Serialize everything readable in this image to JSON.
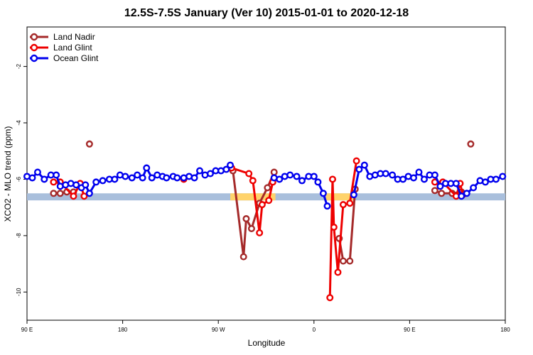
{
  "chart_data": {
    "type": "line",
    "title": "12.5S-7.5S January (Ver 10)   2015-01-01 to 2020-12-18",
    "xlabel": "Longitude",
    "ylabel": "XCO2 - MLO trend (ppm)",
    "xlim": [
      0,
      360
    ],
    "ylim": [
      -11.0,
      -0.6
    ],
    "x_ticks": [
      {
        "x": 0,
        "label": "90 E"
      },
      {
        "x": 72,
        "label": "180"
      },
      {
        "x": 144,
        "label": "90 W"
      },
      {
        "x": 216,
        "label": "0"
      },
      {
        "x": 288,
        "label": "90 E"
      },
      {
        "x": 360,
        "label": "180"
      }
    ],
    "y_ticks": [
      -2,
      -4,
      -6,
      -8,
      -10
    ],
    "grid": false,
    "legend_position": "top-left",
    "bands": [
      {
        "y_low": -6.75,
        "y_high": -6.5,
        "color": "#a9bfdc",
        "x": [
          0,
          360
        ]
      },
      {
        "y_low": -6.75,
        "y_high": -6.5,
        "color": "#ffd36b",
        "x": [
          153,
          187
        ]
      },
      {
        "y_low": -6.75,
        "y_high": -6.5,
        "color": "#ffd36b",
        "x": [
          225,
          247
        ]
      }
    ],
    "series": [
      {
        "name": "Land Nadir",
        "color": "#a52a2a",
        "segments": [
          [
            [
              20,
              -6.5
            ],
            [
              25,
              -6.5
            ],
            [
              30,
              -6.45
            ],
            [
              35,
              -6.45
            ]
          ],
          [
            [
              155,
              -5.7
            ],
            [
              163,
              -8.75
            ],
            [
              165,
              -7.4
            ],
            [
              169,
              -7.75
            ],
            [
              175,
              -6.85
            ],
            [
              181,
              -6.3
            ],
            [
              186,
              -5.75
            ]
          ],
          [
            [
              235,
              -8.1
            ],
            [
              238,
              -8.9
            ],
            [
              243,
              -8.9
            ],
            [
              247,
              -6.35
            ]
          ],
          [
            [
              307,
              -6.4
            ],
            [
              312,
              -6.5
            ],
            [
              320,
              -6.5
            ],
            [
              327,
              -6.45
            ]
          ]
        ],
        "isolated": [
          [
            47,
            -4.75
          ],
          [
            334,
            -4.75
          ]
        ]
      },
      {
        "name": "Land Glint",
        "color": "#ee0000",
        "segments": [
          [
            [
              20,
              -6.1
            ],
            [
              25,
              -6.1
            ],
            [
              35,
              -6.6
            ],
            [
              40,
              -6.15
            ],
            [
              43,
              -6.6
            ]
          ],
          [
            [
              154,
              -5.6
            ],
            [
              167,
              -5.8
            ],
            [
              170,
              -6.05
            ],
            [
              175,
              -7.9
            ],
            [
              177,
              -6.9
            ],
            [
              182,
              -6.75
            ],
            [
              185,
              -6.1
            ]
          ],
          [
            [
              228,
              -10.2
            ],
            [
              230,
              -6.0
            ],
            [
              231,
              -7.7
            ],
            [
              234,
              -9.3
            ],
            [
              238,
              -6.9
            ],
            [
              243,
              -6.85
            ],
            [
              248,
              -5.35
            ]
          ],
          [
            [
              307,
              -6.1
            ],
            [
              313,
              -6.1
            ],
            [
              323,
              -6.6
            ],
            [
              326,
              -6.15
            ],
            [
              328,
              -6.55
            ]
          ],
          [
            [
              118,
              -6.0
            ]
          ]
        ],
        "isolated": []
      },
      {
        "name": "Ocean Glint",
        "color": "#0000ee",
        "segments": [
          [
            [
              0,
              -5.9
            ],
            [
              4,
              -5.95
            ],
            [
              8,
              -5.75
            ],
            [
              13,
              -6.0
            ],
            [
              18,
              -5.85
            ],
            [
              22,
              -5.85
            ],
            [
              25,
              -6.25
            ],
            [
              29,
              -6.2
            ],
            [
              33,
              -6.15
            ],
            [
              37,
              -6.2
            ],
            [
              41,
              -6.3
            ],
            [
              44,
              -6.2
            ],
            [
              47,
              -6.5
            ],
            [
              52,
              -6.1
            ],
            [
              57,
              -6.05
            ],
            [
              62,
              -6.0
            ],
            [
              66,
              -6.0
            ],
            [
              70,
              -5.85
            ],
            [
              74,
              -5.9
            ],
            [
              79,
              -5.95
            ],
            [
              83,
              -5.85
            ],
            [
              87,
              -5.95
            ],
            [
              90,
              -5.6
            ],
            [
              94,
              -5.95
            ],
            [
              98,
              -5.85
            ],
            [
              102,
              -5.9
            ],
            [
              105,
              -5.95
            ],
            [
              110,
              -5.9
            ],
            [
              113,
              -5.95
            ],
            [
              118,
              -5.95
            ],
            [
              122,
              -5.9
            ],
            [
              126,
              -5.95
            ],
            [
              130,
              -5.7
            ],
            [
              134,
              -5.85
            ],
            [
              138,
              -5.8
            ],
            [
              142,
              -5.7
            ],
            [
              146,
              -5.7
            ],
            [
              150,
              -5.65
            ],
            [
              153,
              -5.5
            ]
          ],
          [
            [
              186,
              -5.95
            ],
            [
              190,
              -6.0
            ],
            [
              194,
              -5.9
            ],
            [
              198,
              -5.85
            ],
            [
              203,
              -5.9
            ],
            [
              207,
              -6.05
            ],
            [
              212,
              -5.9
            ],
            [
              216,
              -5.9
            ],
            [
              219,
              -6.1
            ],
            [
              223,
              -6.5
            ],
            [
              226,
              -6.95
            ]
          ],
          [
            [
              246,
              -6.55
            ],
            [
              250,
              -5.65
            ],
            [
              254,
              -5.5
            ],
            [
              258,
              -5.9
            ],
            [
              262,
              -5.85
            ],
            [
              266,
              -5.8
            ],
            [
              270,
              -5.8
            ],
            [
              275,
              -5.85
            ],
            [
              279,
              -6.0
            ],
            [
              283,
              -6.0
            ],
            [
              287,
              -5.9
            ],
            [
              291,
              -5.95
            ],
            [
              295,
              -5.75
            ],
            [
              299,
              -6.0
            ],
            [
              303,
              -5.85
            ],
            [
              307,
              -5.85
            ],
            [
              311,
              -6.25
            ],
            [
              315,
              -6.15
            ],
            [
              319,
              -6.15
            ],
            [
              323,
              -6.15
            ],
            [
              327,
              -6.6
            ],
            [
              331,
              -6.5
            ],
            [
              336,
              -6.3
            ],
            [
              341,
              -6.05
            ],
            [
              345,
              -6.1
            ],
            [
              349,
              -6.0
            ],
            [
              353,
              -6.0
            ],
            [
              358,
              -5.9
            ]
          ]
        ],
        "isolated": []
      }
    ]
  }
}
